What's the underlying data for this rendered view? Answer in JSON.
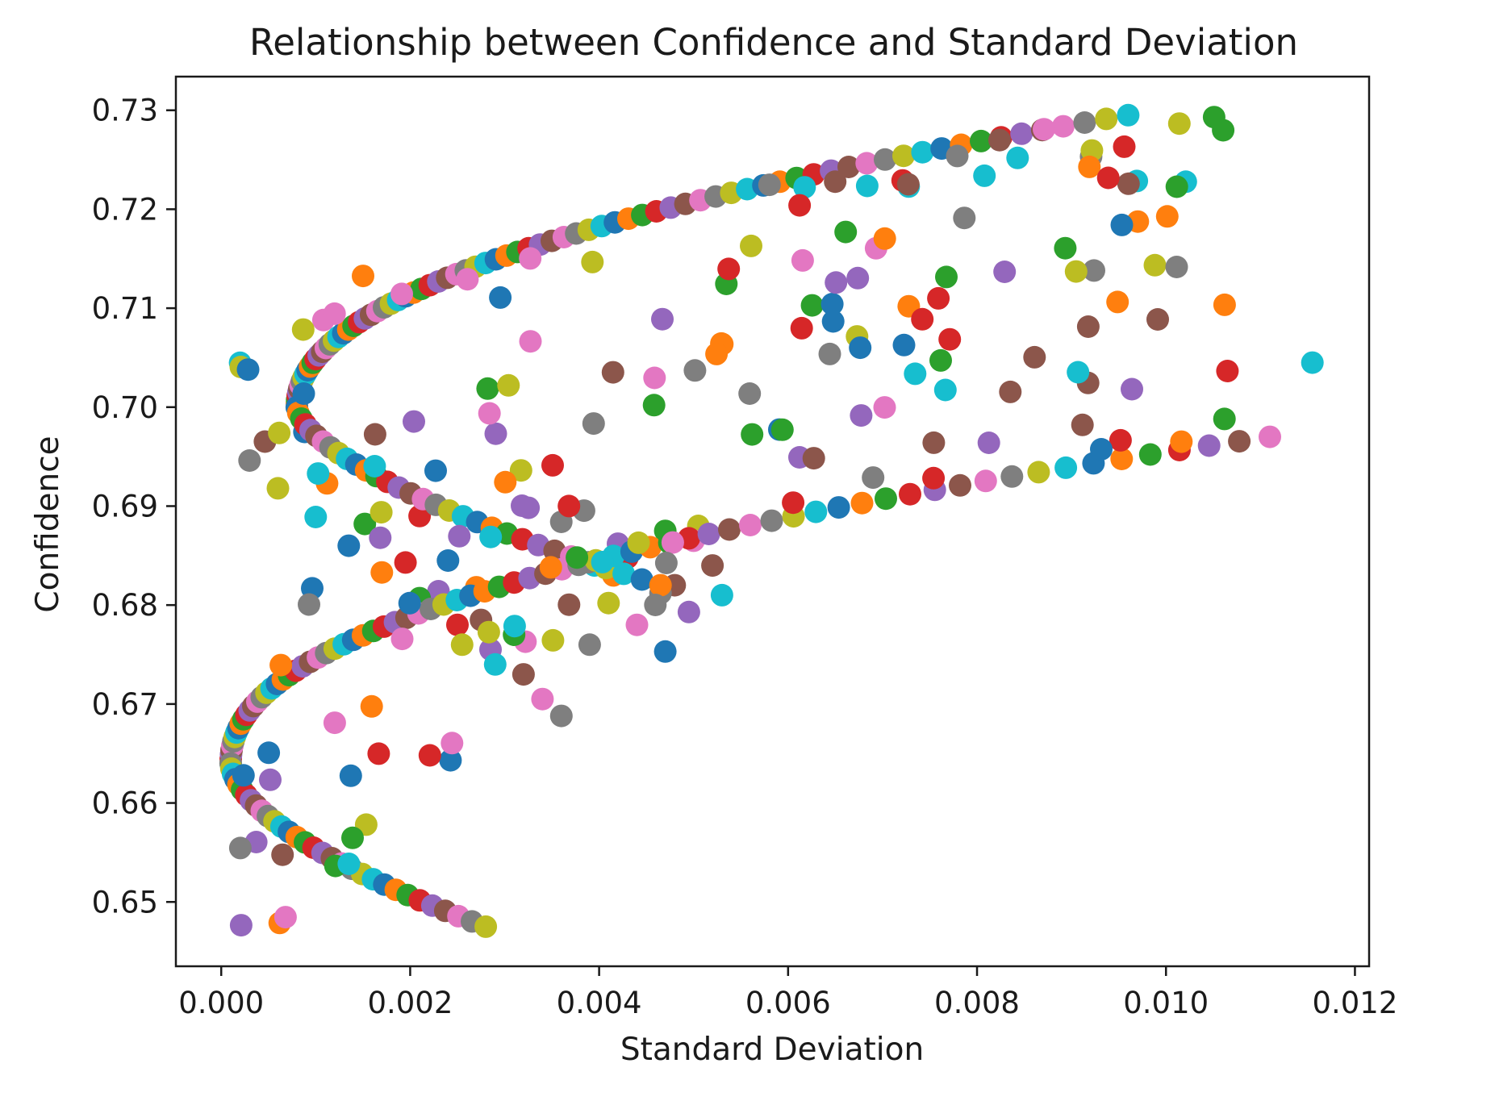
{
  "chart_data": {
    "type": "scatter",
    "title": "Relationship between Confidence and Standard Deviation",
    "xlabel": "Standard Deviation",
    "ylabel": "Confidence",
    "xlim": [
      -0.00048,
      0.01215
    ],
    "ylim": [
      0.6435,
      0.7334
    ],
    "xticks": [
      0.0,
      0.002,
      0.004,
      0.006,
      0.008,
      0.01,
      0.012
    ],
    "xtick_labels": [
      "0.000",
      "0.002",
      "0.004",
      "0.006",
      "0.008",
      "0.010",
      "0.012"
    ],
    "yticks": [
      0.65,
      0.66,
      0.67,
      0.68,
      0.69,
      0.7,
      0.71,
      0.72,
      0.73
    ],
    "ytick_labels": [
      "0.65",
      "0.66",
      "0.67",
      "0.68",
      "0.69",
      "0.70",
      "0.71",
      "0.72",
      "0.73"
    ],
    "grid": false,
    "legend": "none",
    "palette": [
      "#1f77b4",
      "#ff7f0e",
      "#2ca02c",
      "#d62728",
      "#9467bd",
      "#8c564b",
      "#e377c2",
      "#7f7f7f",
      "#bcbd22",
      "#17becf"
    ],
    "points": [
      [
        0.00088,
        0.6975
      ],
      [
        0.00112,
        0.6923
      ],
      [
        0.00152,
        0.6882
      ],
      [
        0.00195,
        0.6843
      ],
      [
        0.0023,
        0.6814
      ],
      [
        0.00275,
        0.6785
      ],
      [
        0.00322,
        0.6763
      ],
      [
        0.0003,
        0.6946
      ],
      [
        0.0006,
        0.6918
      ],
      [
        0.001,
        0.6889
      ],
      [
        0.00135,
        0.686
      ],
      [
        0.0017,
        0.6833
      ],
      [
        0.0021,
        0.6807
      ],
      [
        0.0025,
        0.678
      ],
      [
        0.00285,
        0.6755
      ],
      [
        0.0032,
        0.673
      ],
      [
        0.0034,
        0.6705
      ],
      [
        0.0036,
        0.6688
      ],
      [
        0.00255,
        0.676
      ],
      [
        0.0029,
        0.674
      ],
      [
        0.0024,
        0.6845
      ],
      [
        0.0027,
        0.6818
      ],
      [
        0.0031,
        0.677
      ],
      [
        0.0021,
        0.689
      ],
      [
        0.0042,
        0.6862
      ],
      [
        0.0048,
        0.682
      ],
      [
        0.0044,
        0.678
      ],
      [
        0.0039,
        0.676
      ],
      [
        0.00505,
        0.688
      ],
      [
        0.0053,
        0.681
      ],
      [
        0.0047,
        0.6753
      ],
      [
        0.00415,
        0.683
      ],
      [
        0.0047,
        0.6875
      ],
      [
        0.0043,
        0.6848
      ],
      [
        0.00495,
        0.6793
      ],
      [
        0.0052,
        0.684
      ],
      [
        0.005,
        0.6865
      ],
      [
        0.00465,
        0.6812
      ],
      [
        0.0041,
        0.6802
      ],
      [
        0.00395,
        0.684
      ]
    ],
    "annotations": []
  }
}
